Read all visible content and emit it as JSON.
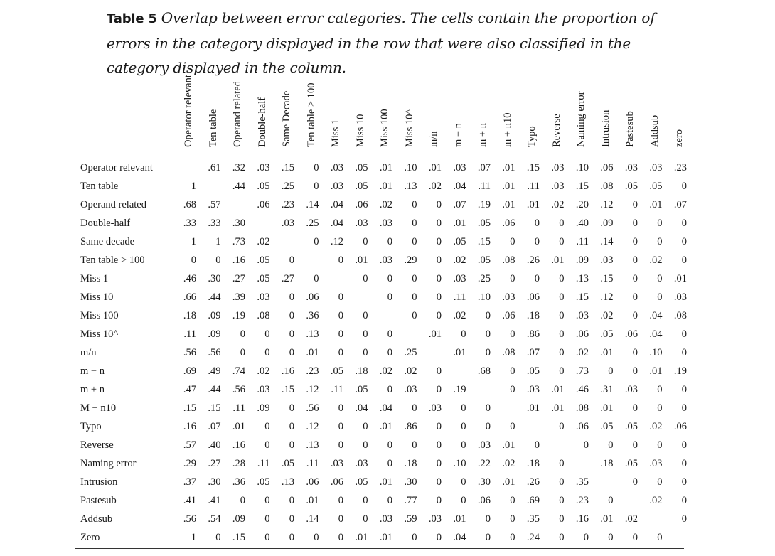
{
  "caption": {
    "label": "Table 5",
    "text": "Overlap between error categories. The cells contain the proportion of errors in the category displayed in the row that were also classified in the category displayed in the column."
  },
  "table": {
    "columns": [
      "Operator relevant",
      "Ten table",
      "Operand related",
      "Double-half",
      "Same Decade",
      "Ten table > 100",
      "Miss 1",
      "Miss 10",
      "Miss 100",
      "Miss 10^",
      "m/n",
      "m − n",
      "m + n",
      "m + n10",
      "Typo",
      "Reverse",
      "Naming error",
      "Intrusion",
      "Pastesub",
      "Addsub",
      "zero"
    ],
    "rows": [
      {
        "label": "Operator relevant",
        "cells": [
          "",
          ".61",
          ".32",
          ".03",
          ".15",
          "0",
          ".03",
          ".05",
          ".01",
          ".10",
          ".01",
          ".03",
          ".07",
          ".01",
          ".15",
          ".03",
          ".10",
          ".06",
          ".03",
          ".03",
          ".23"
        ]
      },
      {
        "label": "Ten table",
        "cells": [
          "1",
          "",
          ".44",
          ".05",
          ".25",
          "0",
          ".03",
          ".05",
          ".01",
          ".13",
          ".02",
          ".04",
          ".11",
          ".01",
          ".11",
          ".03",
          ".15",
          ".08",
          ".05",
          ".05",
          "0"
        ]
      },
      {
        "label": "Operand related",
        "cells": [
          ".68",
          ".57",
          "",
          ".06",
          ".23",
          ".14",
          ".04",
          ".06",
          ".02",
          "0",
          "0",
          ".07",
          ".19",
          ".01",
          ".01",
          ".02",
          ".20",
          ".12",
          "0",
          ".01",
          ".07"
        ]
      },
      {
        "label": "Double-half",
        "cells": [
          ".33",
          ".33",
          ".30",
          "",
          ".03",
          ".25",
          ".04",
          ".03",
          ".03",
          "0",
          "0",
          ".01",
          ".05",
          ".06",
          "0",
          "0",
          ".40",
          ".09",
          "0",
          "0",
          "0"
        ]
      },
      {
        "label": "Same decade",
        "cells": [
          "1",
          "1",
          ".73",
          ".02",
          "",
          "0",
          ".12",
          "0",
          "0",
          "0",
          "0",
          ".05",
          ".15",
          "0",
          "0",
          "0",
          ".11",
          ".14",
          "0",
          "0",
          "0"
        ]
      },
      {
        "label": "Ten table > 100",
        "cells": [
          "0",
          "0",
          ".16",
          ".05",
          "0",
          "",
          "0",
          ".01",
          ".03",
          ".29",
          "0",
          ".02",
          ".05",
          ".08",
          ".26",
          ".01",
          ".09",
          ".03",
          "0",
          ".02",
          "0"
        ]
      },
      {
        "label": "Miss 1",
        "cells": [
          ".46",
          ".30",
          ".27",
          ".05",
          ".27",
          "0",
          "",
          "0",
          "0",
          "0",
          "0",
          ".03",
          ".25",
          "0",
          "0",
          "0",
          ".13",
          ".15",
          "0",
          "0",
          ".01"
        ]
      },
      {
        "label": "Miss 10",
        "cells": [
          ".66",
          ".44",
          ".39",
          ".03",
          "0",
          ".06",
          "0",
          "",
          "0",
          "0",
          "0",
          ".11",
          ".10",
          ".03",
          ".06",
          "0",
          ".15",
          ".12",
          "0",
          "0",
          ".03"
        ]
      },
      {
        "label": "Miss 100",
        "cells": [
          ".18",
          ".09",
          ".19",
          ".08",
          "0",
          ".36",
          "0",
          "0",
          "",
          "0",
          "0",
          ".02",
          "0",
          ".06",
          ".18",
          "0",
          ".03",
          ".02",
          "0",
          ".04",
          ".08"
        ]
      },
      {
        "label": "Miss 10^",
        "cells": [
          ".11",
          ".09",
          "0",
          "0",
          "0",
          ".13",
          "0",
          "0",
          "0",
          "",
          ".01",
          "0",
          "0",
          "0",
          ".86",
          "0",
          ".06",
          ".05",
          ".06",
          ".04",
          "0"
        ]
      },
      {
        "label": "m/n",
        "cells": [
          ".56",
          ".56",
          "0",
          "0",
          "0",
          ".01",
          "0",
          "0",
          "0",
          ".25",
          "",
          ".01",
          "0",
          ".08",
          ".07",
          "0",
          ".02",
          ".01",
          "0",
          ".10",
          "0"
        ]
      },
      {
        "label": "m − n",
        "cells": [
          ".69",
          ".49",
          ".74",
          ".02",
          ".16",
          ".23",
          ".05",
          ".18",
          ".02",
          ".02",
          "0",
          "",
          ".68",
          "0",
          ".05",
          "0",
          ".73",
          "0",
          "0",
          ".01",
          ".19"
        ]
      },
      {
        "label": "m + n",
        "cells": [
          ".47",
          ".44",
          ".56",
          ".03",
          ".15",
          ".12",
          ".11",
          ".05",
          "0",
          ".03",
          "0",
          ".19",
          "",
          "0",
          ".03",
          ".01",
          ".46",
          ".31",
          ".03",
          "0",
          "0"
        ]
      },
      {
        "label": "M + n10",
        "cells": [
          ".15",
          ".15",
          ".11",
          ".09",
          "0",
          ".56",
          "0",
          ".04",
          ".04",
          "0",
          ".03",
          "0",
          "0",
          "",
          ".01",
          ".01",
          ".08",
          ".01",
          "0",
          "0",
          "0"
        ]
      },
      {
        "label": "Typo",
        "cells": [
          ".16",
          ".07",
          ".01",
          "0",
          "0",
          ".12",
          "0",
          "0",
          ".01",
          ".86",
          "0",
          "0",
          "0",
          "0",
          "",
          "0",
          ".06",
          ".05",
          ".05",
          ".02",
          ".06"
        ]
      },
      {
        "label": "Reverse",
        "cells": [
          ".57",
          ".40",
          ".16",
          "0",
          "0",
          ".13",
          "0",
          "0",
          "0",
          "0",
          "0",
          "0",
          ".03",
          ".01",
          "0",
          "",
          "0",
          "0",
          "0",
          "0",
          "0"
        ]
      },
      {
        "label": "Naming error",
        "cells": [
          ".29",
          ".27",
          ".28",
          ".11",
          ".05",
          ".11",
          ".03",
          ".03",
          "0",
          ".18",
          "0",
          ".10",
          ".22",
          ".02",
          ".18",
          "0",
          "",
          ".18",
          ".05",
          ".03",
          "0"
        ]
      },
      {
        "label": "Intrusion",
        "cells": [
          ".37",
          ".30",
          ".36",
          ".05",
          ".13",
          ".06",
          ".06",
          ".05",
          ".01",
          ".30",
          "0",
          "0",
          ".30",
          ".01",
          ".26",
          "0",
          ".35",
          "",
          "0",
          "0",
          "0"
        ]
      },
      {
        "label": "Pastesub",
        "cells": [
          ".41",
          ".41",
          "0",
          "0",
          "0",
          ".01",
          "0",
          "0",
          "0",
          ".77",
          "0",
          "0",
          ".06",
          "0",
          ".69",
          "0",
          ".23",
          "0",
          "",
          ".02",
          "0"
        ]
      },
      {
        "label": "Addsub",
        "cells": [
          ".56",
          ".54",
          ".09",
          "0",
          "0",
          ".14",
          "0",
          "0",
          ".03",
          ".59",
          ".03",
          ".01",
          "0",
          "0",
          ".35",
          "0",
          ".16",
          ".01",
          ".02",
          "",
          "0"
        ]
      },
      {
        "label": "Zero",
        "cells": [
          "1",
          "0",
          ".15",
          "0",
          "0",
          "0",
          "0",
          ".01",
          ".01",
          "0",
          "0",
          ".04",
          "0",
          "0",
          ".24",
          "0",
          "0",
          "0",
          "0",
          "0",
          ""
        ]
      }
    ]
  }
}
